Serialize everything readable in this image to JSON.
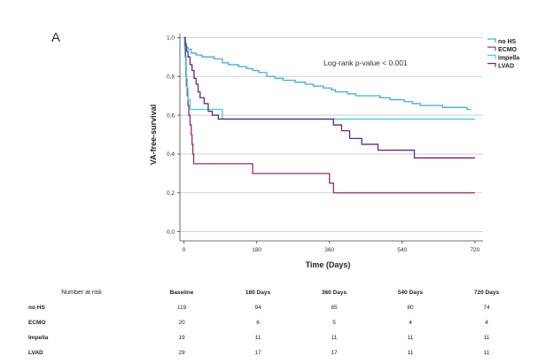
{
  "panel_label": "A",
  "chart_data": {
    "type": "line",
    "title": "",
    "xlabel": "Time (Days)",
    "ylabel": "VA-free-survival",
    "xlim": [
      -10,
      740
    ],
    "ylim": [
      -0.02,
      1.02
    ],
    "x_ticks": [
      0,
      180,
      360,
      540,
      720
    ],
    "x_tick_labels": [
      "0",
      "180",
      "360",
      "540",
      "720"
    ],
    "y_ticks": [
      0.0,
      0.2,
      0.4,
      0.6,
      0.8,
      1.0
    ],
    "y_tick_labels": [
      "0,0",
      "0,2",
      "0,4",
      "0,6",
      "0,8",
      "1,0"
    ],
    "grid": "horizontal",
    "legend_position": "top-right",
    "annotation": "Log-rank p-value < 0.001",
    "series": [
      {
        "name": "no HS",
        "color": "#3aaee0",
        "points": [
          [
            0,
            1.0
          ],
          [
            2,
            0.99
          ],
          [
            4,
            0.97
          ],
          [
            6,
            0.95
          ],
          [
            10,
            0.94
          ],
          [
            18,
            0.92
          ],
          [
            30,
            0.91
          ],
          [
            45,
            0.9
          ],
          [
            75,
            0.89
          ],
          [
            95,
            0.87
          ],
          [
            110,
            0.86
          ],
          [
            135,
            0.85
          ],
          [
            155,
            0.84
          ],
          [
            170,
            0.83
          ],
          [
            185,
            0.82
          ],
          [
            205,
            0.8
          ],
          [
            225,
            0.79
          ],
          [
            245,
            0.78
          ],
          [
            275,
            0.77
          ],
          [
            300,
            0.76
          ],
          [
            320,
            0.75
          ],
          [
            345,
            0.74
          ],
          [
            365,
            0.73
          ],
          [
            375,
            0.72
          ],
          [
            405,
            0.71
          ],
          [
            425,
            0.7
          ],
          [
            485,
            0.69
          ],
          [
            510,
            0.68
          ],
          [
            545,
            0.67
          ],
          [
            565,
            0.66
          ],
          [
            585,
            0.65
          ],
          [
            640,
            0.64
          ],
          [
            700,
            0.63
          ],
          [
            710,
            0.63
          ]
        ]
      },
      {
        "name": "ECMO",
        "color": "#9c2a62",
        "points": [
          [
            0,
            1.0
          ],
          [
            2,
            0.95
          ],
          [
            4,
            0.9
          ],
          [
            5,
            0.8
          ],
          [
            6,
            0.75
          ],
          [
            8,
            0.7
          ],
          [
            10,
            0.65
          ],
          [
            12,
            0.6
          ],
          [
            15,
            0.55
          ],
          [
            18,
            0.5
          ],
          [
            20,
            0.45
          ],
          [
            22,
            0.4
          ],
          [
            24,
            0.35
          ],
          [
            170,
            0.3
          ],
          [
            360,
            0.25
          ],
          [
            370,
            0.2
          ],
          [
            720,
            0.2
          ]
        ]
      },
      {
        "name": "Impella",
        "color": "#3ccfe0",
        "points": [
          [
            0,
            1.0
          ],
          [
            2,
            0.9
          ],
          [
            4,
            0.84
          ],
          [
            6,
            0.79
          ],
          [
            8,
            0.74
          ],
          [
            10,
            0.68
          ],
          [
            15,
            0.63
          ],
          [
            95,
            0.58
          ],
          [
            720,
            0.58
          ]
        ]
      },
      {
        "name": "LVAD",
        "color": "#5e2a84",
        "points": [
          [
            0,
            1.0
          ],
          [
            3,
            0.96
          ],
          [
            6,
            0.93
          ],
          [
            10,
            0.9
          ],
          [
            15,
            0.86
          ],
          [
            20,
            0.83
          ],
          [
            25,
            0.79
          ],
          [
            30,
            0.76
          ],
          [
            35,
            0.72
          ],
          [
            40,
            0.69
          ],
          [
            50,
            0.66
          ],
          [
            60,
            0.62
          ],
          [
            70,
            0.6
          ],
          [
            80,
            0.6
          ],
          [
            85,
            0.58
          ],
          [
            95,
            0.58
          ],
          [
            360,
            0.58
          ],
          [
            370,
            0.55
          ],
          [
            390,
            0.52
          ],
          [
            410,
            0.48
          ],
          [
            440,
            0.45
          ],
          [
            480,
            0.42
          ],
          [
            570,
            0.38
          ],
          [
            720,
            0.38
          ]
        ]
      }
    ]
  },
  "risk_table": {
    "title": "Number at risk",
    "headers": [
      "Baseline",
      "180 Days",
      "360 Days",
      "540 Days",
      "720 Days"
    ],
    "rows": [
      {
        "label": "no HS",
        "values": [
          "119",
          "94",
          "85",
          "80",
          "74"
        ]
      },
      {
        "label": "ECMO",
        "values": [
          "20",
          "6",
          "5",
          "4",
          "4"
        ]
      },
      {
        "label": "Impella",
        "values": [
          "19",
          "11",
          "11",
          "11",
          "11"
        ]
      },
      {
        "label": "LVAD",
        "values": [
          "29",
          "17",
          "17",
          "11",
          "11"
        ]
      }
    ]
  }
}
